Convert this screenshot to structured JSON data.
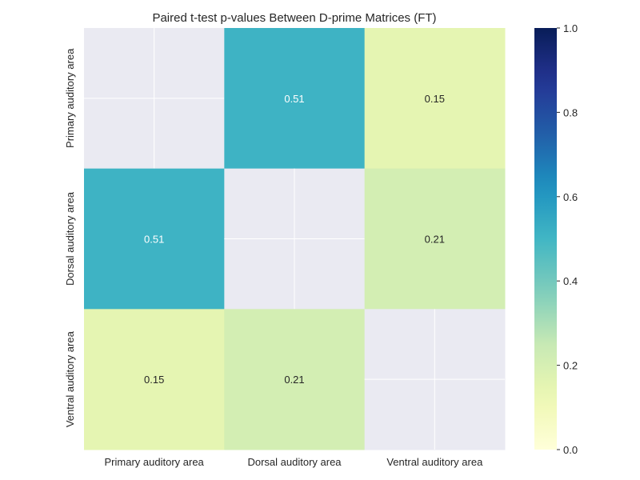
{
  "chart_data": {
    "type": "heatmap",
    "title": "Paired t-test p-values Between D-prime Matrices (FT)",
    "xlabel": "",
    "ylabel": "",
    "x_categories": [
      "Primary auditory area",
      "Dorsal auditory area",
      "Ventral auditory area"
    ],
    "y_categories": [
      "Primary auditory area",
      "Dorsal auditory area",
      "Ventral auditory area"
    ],
    "values": [
      [
        null,
        0.51,
        0.15
      ],
      [
        0.51,
        null,
        0.21
      ],
      [
        0.15,
        0.21,
        null
      ]
    ],
    "cell_labels": [
      [
        "",
        "0.51",
        "0.15"
      ],
      [
        "0.51",
        "",
        "0.21"
      ],
      [
        "0.15",
        "0.21",
        ""
      ]
    ],
    "vmin": 0.0,
    "vmax": 1.0,
    "colormap": "YlGnBu",
    "missing_color": "#eaeaf2",
    "colorbar": {
      "ticks": [
        0.0,
        0.2,
        0.4,
        0.6,
        0.8,
        1.0
      ],
      "tick_labels": [
        "0.0",
        "0.2",
        "0.4",
        "0.6",
        "0.8",
        "1.0"
      ]
    },
    "grid": true
  }
}
